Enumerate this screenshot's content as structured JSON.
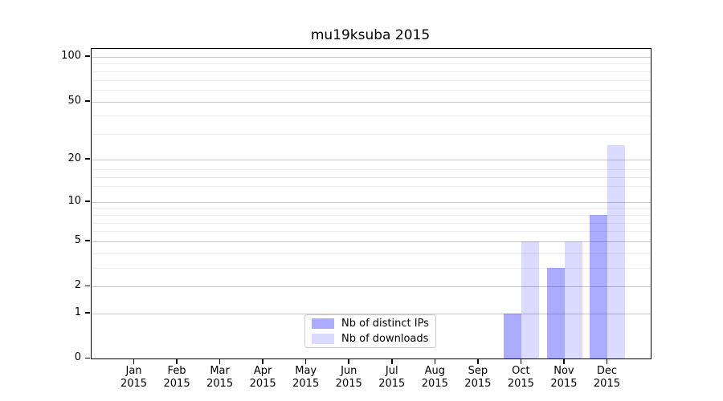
{
  "title": "mu19ksuba 2015",
  "chart_data": {
    "type": "bar",
    "title": "mu19ksuba 2015",
    "categories": [
      "Jan 2015",
      "Feb 2015",
      "Mar 2015",
      "Apr 2015",
      "May 2015",
      "Jun 2015",
      "Jul 2015",
      "Aug 2015",
      "Sep 2015",
      "Oct 2015",
      "Nov 2015",
      "Dec 2015"
    ],
    "series": [
      {
        "name": "Nb of distinct IPs",
        "color": "#0000ff",
        "alpha": 0.33,
        "values": [
          0,
          0,
          0,
          0,
          0,
          0,
          0,
          0,
          0,
          1,
          3,
          8
        ]
      },
      {
        "name": "Nb of downloads",
        "color": "#0000ff",
        "alpha": 0.14,
        "values": [
          0,
          0,
          0,
          0,
          0,
          0,
          0,
          0,
          0,
          5,
          5,
          25
        ]
      }
    ],
    "xlabel": "",
    "ylabel": "",
    "yscale": "log1p",
    "ylim": [
      0,
      113
    ],
    "yticks": [
      0,
      1,
      2,
      5,
      10,
      20,
      50,
      100
    ],
    "yticks_minor": [
      3,
      4,
      6,
      7,
      8,
      9,
      13,
      15,
      17,
      30,
      40,
      60,
      70,
      80,
      90
    ],
    "grid": "both",
    "grid_major_color": "#c8c8c8",
    "grid_minor_color": "#ebebeb",
    "legend_position": "lower center",
    "legend_border_color": "#cccccc"
  }
}
